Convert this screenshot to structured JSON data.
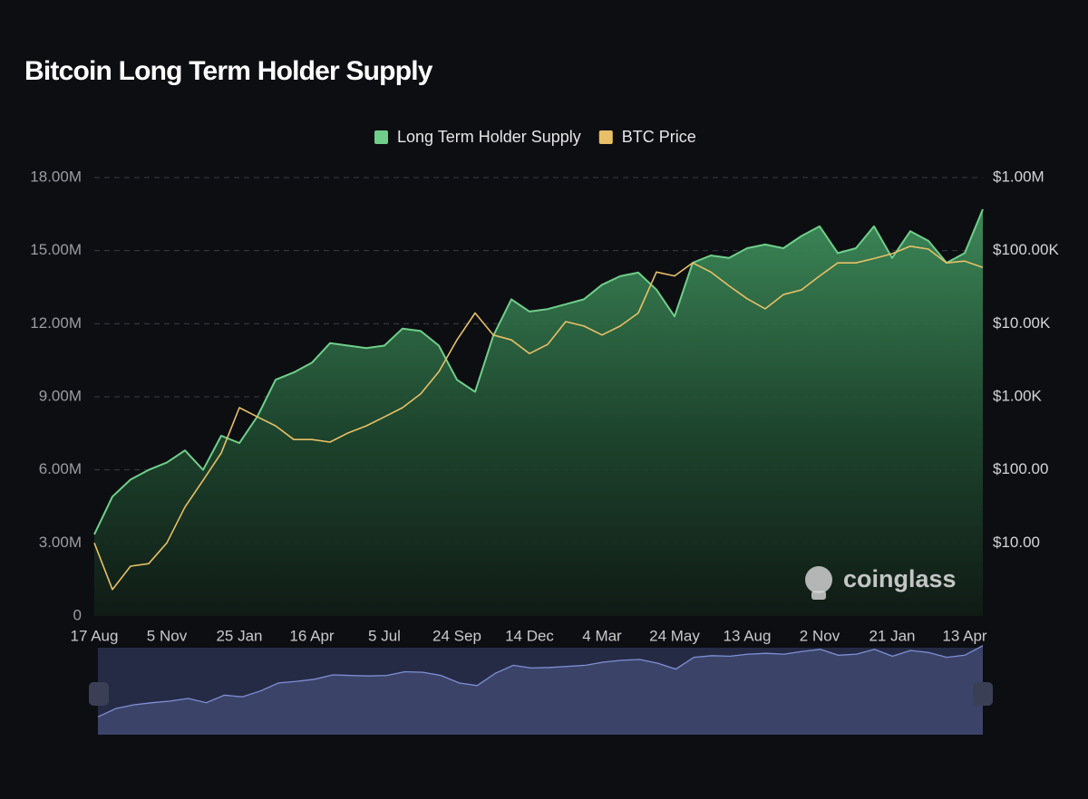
{
  "chart_data": {
    "type": "line",
    "title": "Bitcoin Long Term Holder Supply",
    "watermark": "coinglass",
    "legend": "top",
    "grid": true,
    "categories": [
      "17 Aug",
      null,
      null,
      null,
      "5 Nov",
      null,
      null,
      null,
      "25 Jan",
      null,
      null,
      null,
      "16 Apr",
      null,
      null,
      null,
      "5 Jul",
      null,
      null,
      null,
      "24 Sep",
      null,
      null,
      null,
      "14 Dec",
      null,
      null,
      null,
      "4 Mar",
      null,
      null,
      null,
      "24 May",
      null,
      null,
      null,
      "13 Aug",
      null,
      null,
      null,
      "2 Nov",
      null,
      null,
      null,
      "21 Jan",
      null,
      null,
      null,
      "13 Apr",
      null
    ],
    "series": [
      {
        "name": "Long Term Holder Supply",
        "color": "#6fcf8a",
        "fill": "area",
        "axis": "y",
        "values": [
          3350000,
          4900000,
          5600000,
          6000000,
          6300000,
          6800000,
          6000000,
          7400000,
          7100000,
          8200000,
          9700000,
          10000000,
          10400000,
          11200000,
          11100000,
          11000000,
          11100000,
          11800000,
          11700000,
          11100000,
          9700000,
          9200000,
          11500000,
          13000000,
          12500000,
          12600000,
          12800000,
          13000000,
          13600000,
          13950000,
          14100000,
          13400000,
          12300000,
          14500000,
          14800000,
          14700000,
          15100000,
          15250000,
          15100000,
          15600000,
          16000000,
          14900000,
          15100000,
          16000000,
          14700000,
          15800000,
          15400000,
          14500000,
          14900000,
          16700000
        ]
      },
      {
        "name": "BTC Price",
        "color": "#e8c067",
        "axis": "y2",
        "values": [
          10,
          2.3,
          4.8,
          5.2,
          10,
          31,
          72,
          170,
          710,
          530,
          400,
          260,
          260,
          240,
          320,
          400,
          530,
          710,
          1100,
          2200,
          6000,
          14000,
          7000,
          6000,
          3900,
          5200,
          10700,
          9300,
          7000,
          9300,
          14000,
          51000,
          45000,
          68000,
          51000,
          33000,
          22000,
          16000,
          25000,
          29000,
          45000,
          68000,
          68000,
          78000,
          91000,
          115000,
          105000,
          68000,
          72000,
          59000
        ]
      }
    ],
    "ylim": [
      0,
      18000000
    ],
    "yticks": [
      0,
      {
        "value": 3000000,
        "label": "3.00M"
      },
      {
        "value": 6000000,
        "label": "6.00M"
      },
      {
        "value": 9000000,
        "label": "9.00M"
      },
      {
        "value": 12000000,
        "label": "12.00M"
      },
      {
        "value": 15000000,
        "label": "15.00M"
      },
      {
        "value": 18000000,
        "label": "18.00M"
      }
    ],
    "y2lim": [
      1,
      1000000
    ],
    "y2log": true,
    "y2ticks": [
      {
        "value": 10,
        "label": "$10.00"
      },
      {
        "value": 100,
        "label": "$100.00"
      },
      {
        "value": 1000,
        "label": "$1.00K"
      },
      {
        "value": 10000,
        "label": "$10.00K"
      },
      {
        "value": 100000,
        "label": "$100.00K"
      },
      {
        "value": 1000000,
        "label": "$1.00M"
      }
    ]
  }
}
